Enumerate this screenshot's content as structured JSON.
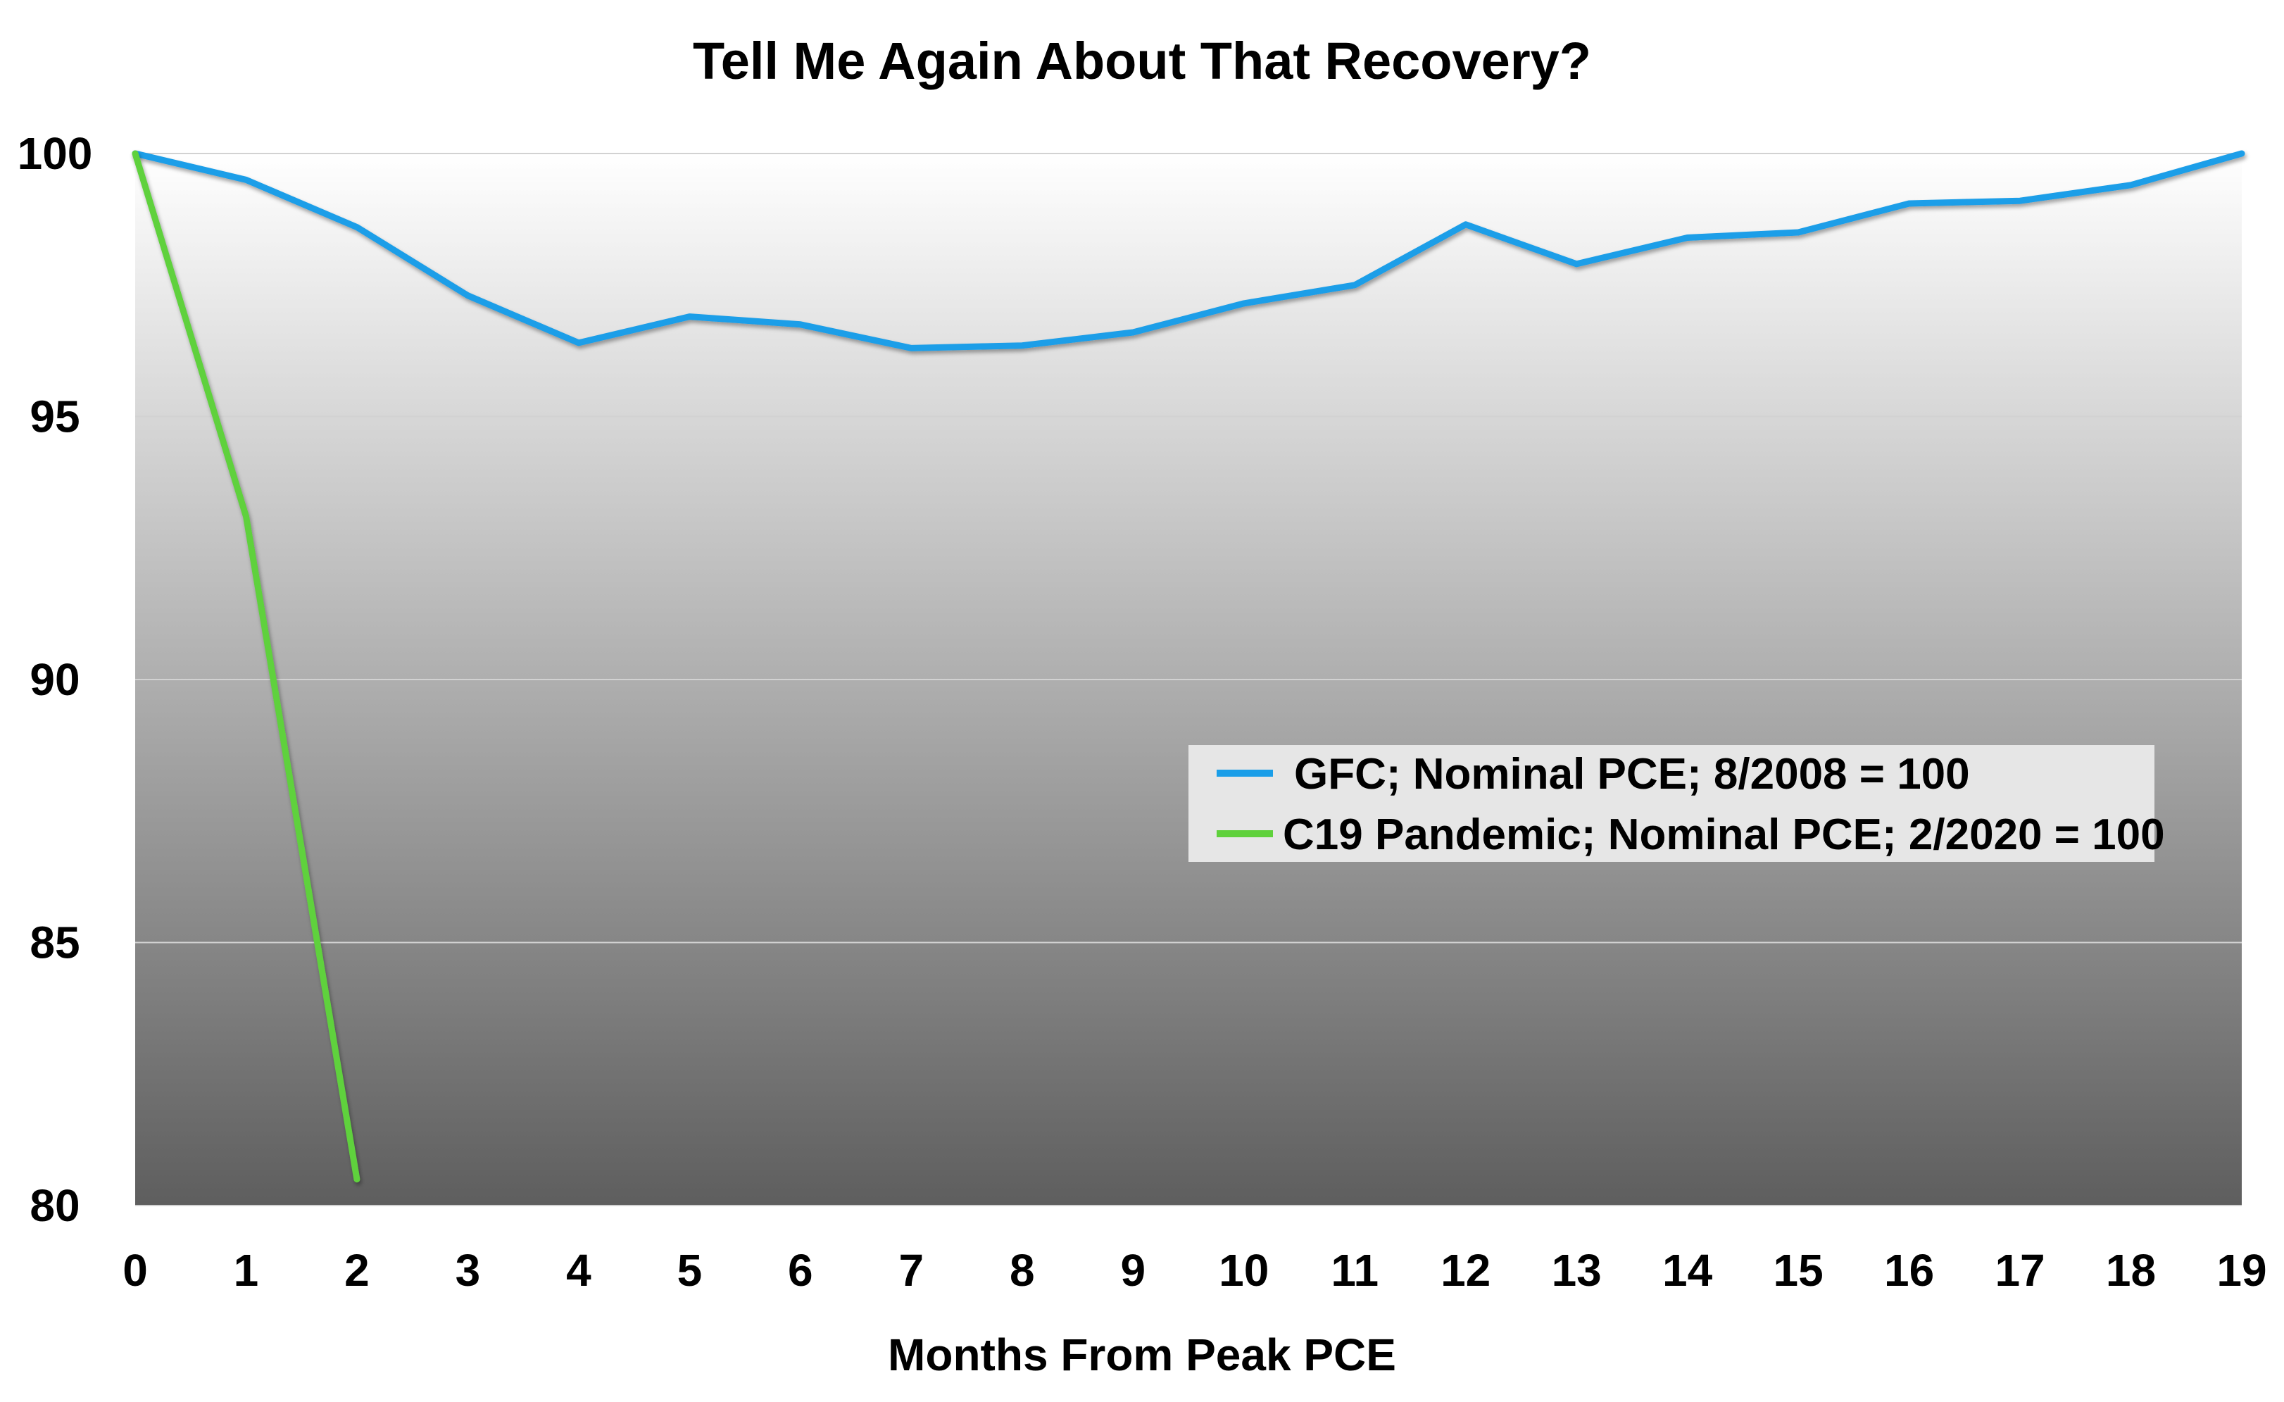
{
  "chart_data": {
    "type": "line",
    "title": "Tell Me Again About That Recovery?",
    "xlabel": "Months From Peak PCE",
    "ylabel": "",
    "x": [
      0,
      1,
      2,
      3,
      4,
      5,
      6,
      7,
      8,
      9,
      10,
      11,
      12,
      13,
      14,
      15,
      16,
      17,
      18,
      19
    ],
    "xlim": [
      0,
      19
    ],
    "ylim": [
      80,
      100
    ],
    "yticks": [
      80,
      85,
      90,
      95,
      100
    ],
    "grid": true,
    "legend_position": "center-right",
    "background": "vertical gradient white to dark gray",
    "series": [
      {
        "name": "GFC; Nominal PCE; 8/2008 = 100",
        "color": "#1a9ee8",
        "x": [
          0,
          1,
          2,
          3,
          4,
          5,
          6,
          7,
          8,
          9,
          10,
          11,
          12,
          13,
          14,
          15,
          16,
          17,
          18,
          19
        ],
        "values": [
          100,
          99.5,
          98.6,
          97.3,
          96.4,
          96.9,
          96.75,
          96.3,
          96.35,
          96.6,
          97.15,
          97.5,
          98.65,
          97.9,
          98.4,
          98.5,
          99.05,
          99.1,
          99.4,
          100
        ]
      },
      {
        "name": "C19 Pandemic; Nominal PCE; 2/2020 = 100",
        "color": "#5fd13c",
        "x": [
          0,
          1,
          2
        ],
        "values": [
          100,
          93.1,
          80.5
        ]
      }
    ]
  }
}
